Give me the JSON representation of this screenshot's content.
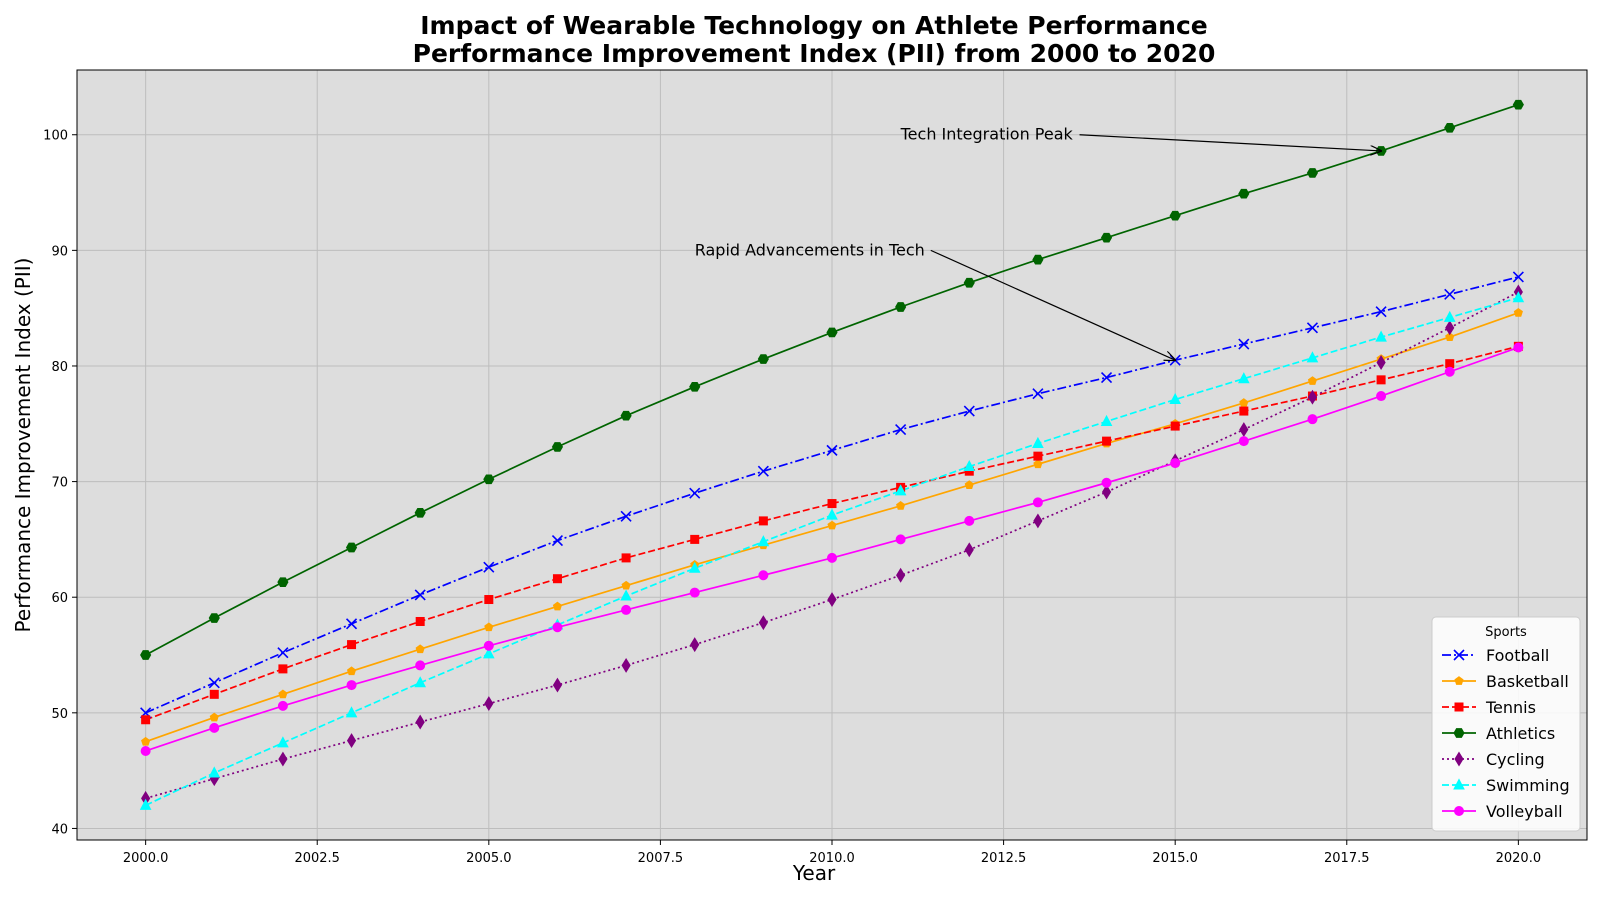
{
  "chart_data": {
    "type": "line",
    "title_line1": "Impact of Wearable Technology on Athlete Performance",
    "title_line2": "Performance Improvement Index (PII) from 2000 to 2020",
    "xlabel": "Year",
    "ylabel": "Performance Improvement Index (PII)",
    "xlim": [
      1999.0,
      2021.0
    ],
    "ylim": [
      39.0,
      105.6
    ],
    "x_ticks": [
      2000.0,
      2002.5,
      2005.0,
      2007.5,
      2010.0,
      2012.5,
      2015.0,
      2017.5,
      2020.0
    ],
    "x_tick_labels": [
      "2000.0",
      "2002.5",
      "2005.0",
      "2007.5",
      "2010.0",
      "2012.5",
      "2015.0",
      "2017.5",
      "2020.0"
    ],
    "y_ticks": [
      40,
      50,
      60,
      70,
      80,
      90,
      100
    ],
    "y_tick_labels": [
      "40",
      "50",
      "60",
      "70",
      "80",
      "90",
      "100"
    ],
    "grid": true,
    "background": "#dddddd",
    "legend": {
      "title": "Sports",
      "placement": "lower-right"
    },
    "x": [
      2000,
      2001,
      2002,
      2003,
      2004,
      2005,
      2006,
      2007,
      2008,
      2009,
      2010,
      2011,
      2012,
      2013,
      2014,
      2015,
      2016,
      2017,
      2018,
      2019,
      2020
    ],
    "series": [
      {
        "name": "Football",
        "color": "#0000ff",
        "dash": "dashdot",
        "marker": "x",
        "values": [
          50.0,
          52.6,
          55.2,
          57.7,
          60.2,
          62.6,
          64.9,
          67.0,
          69.0,
          70.9,
          72.7,
          74.5,
          76.1,
          77.6,
          79.0,
          80.5,
          81.9,
          83.3,
          84.7,
          86.2,
          87.7
        ]
      },
      {
        "name": "Basketball",
        "color": "#ffa500",
        "dash": "solid",
        "marker": "pentagon",
        "values": [
          47.5,
          49.6,
          51.6,
          53.6,
          55.5,
          57.4,
          59.2,
          61.0,
          62.8,
          64.5,
          66.2,
          67.9,
          69.7,
          71.5,
          73.3,
          75.0,
          76.8,
          78.7,
          80.6,
          82.5,
          84.6
        ]
      },
      {
        "name": "Tennis",
        "color": "#ff0000",
        "dash": "dashed",
        "marker": "square",
        "values": [
          49.4,
          51.6,
          53.8,
          55.9,
          57.9,
          59.8,
          61.6,
          63.4,
          65.0,
          66.6,
          68.1,
          69.5,
          70.9,
          72.2,
          73.5,
          74.8,
          76.1,
          77.4,
          78.8,
          80.2,
          81.7
        ]
      },
      {
        "name": "Athletics",
        "color": "#006400",
        "dash": "solid",
        "marker": "hexagon",
        "values": [
          55.0,
          58.2,
          61.3,
          64.3,
          67.3,
          70.2,
          73.0,
          75.7,
          78.2,
          80.6,
          82.9,
          85.1,
          87.2,
          89.2,
          91.1,
          93.0,
          94.9,
          96.7,
          98.6,
          100.6,
          102.6
        ]
      },
      {
        "name": "Cycling",
        "color": "#800080",
        "dash": "dotted",
        "marker": "diamond",
        "values": [
          42.6,
          44.3,
          46.0,
          47.6,
          49.2,
          50.8,
          52.4,
          54.1,
          55.9,
          57.8,
          59.8,
          61.9,
          64.1,
          66.6,
          69.1,
          71.8,
          74.5,
          77.3,
          80.3,
          83.3,
          86.4
        ]
      },
      {
        "name": "Swimming",
        "color": "#00ffff",
        "dash": "dashed",
        "marker": "triangle",
        "values": [
          42.0,
          44.8,
          47.4,
          50.0,
          52.6,
          55.1,
          57.6,
          60.1,
          62.5,
          64.8,
          67.1,
          69.2,
          71.3,
          73.3,
          75.2,
          77.1,
          78.9,
          80.7,
          82.5,
          84.2,
          85.9
        ]
      },
      {
        "name": "Volleyball",
        "color": "#ff00ff",
        "dash": "solid",
        "marker": "circle",
        "values": [
          46.7,
          48.7,
          50.6,
          52.4,
          54.1,
          55.8,
          57.4,
          58.9,
          60.4,
          61.9,
          63.4,
          65.0,
          66.6,
          68.2,
          69.9,
          71.6,
          73.5,
          75.4,
          77.4,
          79.5,
          81.6
        ]
      }
    ],
    "annotations": [
      {
        "text": "Tech Integration Peak",
        "text_x": 2011.0,
        "text_y": 100.0,
        "point_x": 2018,
        "point_y": 98.6
      },
      {
        "text": "Rapid Advancements in Tech",
        "text_x": 2008.0,
        "text_y": 90.0,
        "point_x": 2015,
        "point_y": 80.5
      }
    ]
  }
}
